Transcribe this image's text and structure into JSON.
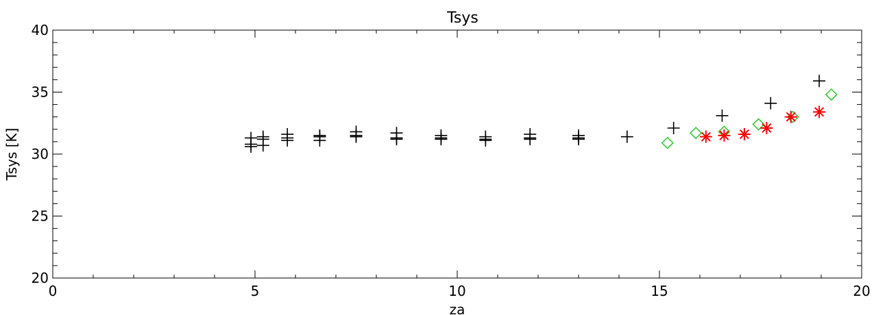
{
  "chart_data": {
    "type": "scatter",
    "title": "Tsys",
    "xlabel": "za",
    "ylabel": "Tsys [K]",
    "xlim": [
      0,
      20
    ],
    "ylim": [
      20,
      40
    ],
    "xticks": [
      0,
      5,
      10,
      15,
      20
    ],
    "yticks": [
      20,
      25,
      30,
      35,
      40
    ],
    "xtick_labels": [
      "0",
      "5",
      "10",
      "15",
      "20"
    ],
    "ytick_labels": [
      "20",
      "25",
      "30",
      "35",
      "40"
    ],
    "grid": false,
    "colors": {
      "axis": "#000000",
      "plus": "#000000",
      "diamond": "#33cc33",
      "asterisk": "#ff0000"
    },
    "series": [
      {
        "marker": "plus",
        "color": "#000000",
        "x": [
          4.9,
          4.9,
          4.9,
          5.2,
          5.2,
          5.2,
          5.8,
          5.8,
          5.8,
          6.6,
          6.6,
          6.6,
          7.5,
          7.5,
          7.5,
          8.5,
          8.5,
          8.5,
          9.6,
          9.6,
          9.6,
          10.7,
          10.7,
          10.7,
          11.8,
          11.8,
          11.8,
          13.0,
          13.0,
          13.0,
          14.2,
          15.35,
          16.55,
          17.75,
          18.95
        ],
        "y": [
          31.3,
          30.8,
          30.6,
          31.4,
          31.2,
          30.7,
          31.6,
          31.3,
          31.1,
          31.5,
          31.4,
          31.1,
          31.8,
          31.5,
          31.4,
          31.7,
          31.3,
          31.2,
          31.5,
          31.3,
          31.2,
          31.4,
          31.2,
          31.1,
          31.6,
          31.3,
          31.2,
          31.5,
          31.3,
          31.2,
          31.4,
          32.1,
          33.1,
          34.1,
          35.9
        ]
      },
      {
        "marker": "diamond",
        "color": "#33cc33",
        "x": [
          15.2,
          15.9,
          16.6,
          17.45,
          18.3,
          19.25
        ],
        "y": [
          30.9,
          31.7,
          31.8,
          32.4,
          33.0,
          34.8
        ]
      },
      {
        "marker": "asterisk",
        "color": "#ff0000",
        "x": [
          16.15,
          16.6,
          17.1,
          17.65,
          18.25,
          18.95
        ],
        "y": [
          31.4,
          31.5,
          31.6,
          32.1,
          33.0,
          33.4
        ]
      }
    ]
  }
}
